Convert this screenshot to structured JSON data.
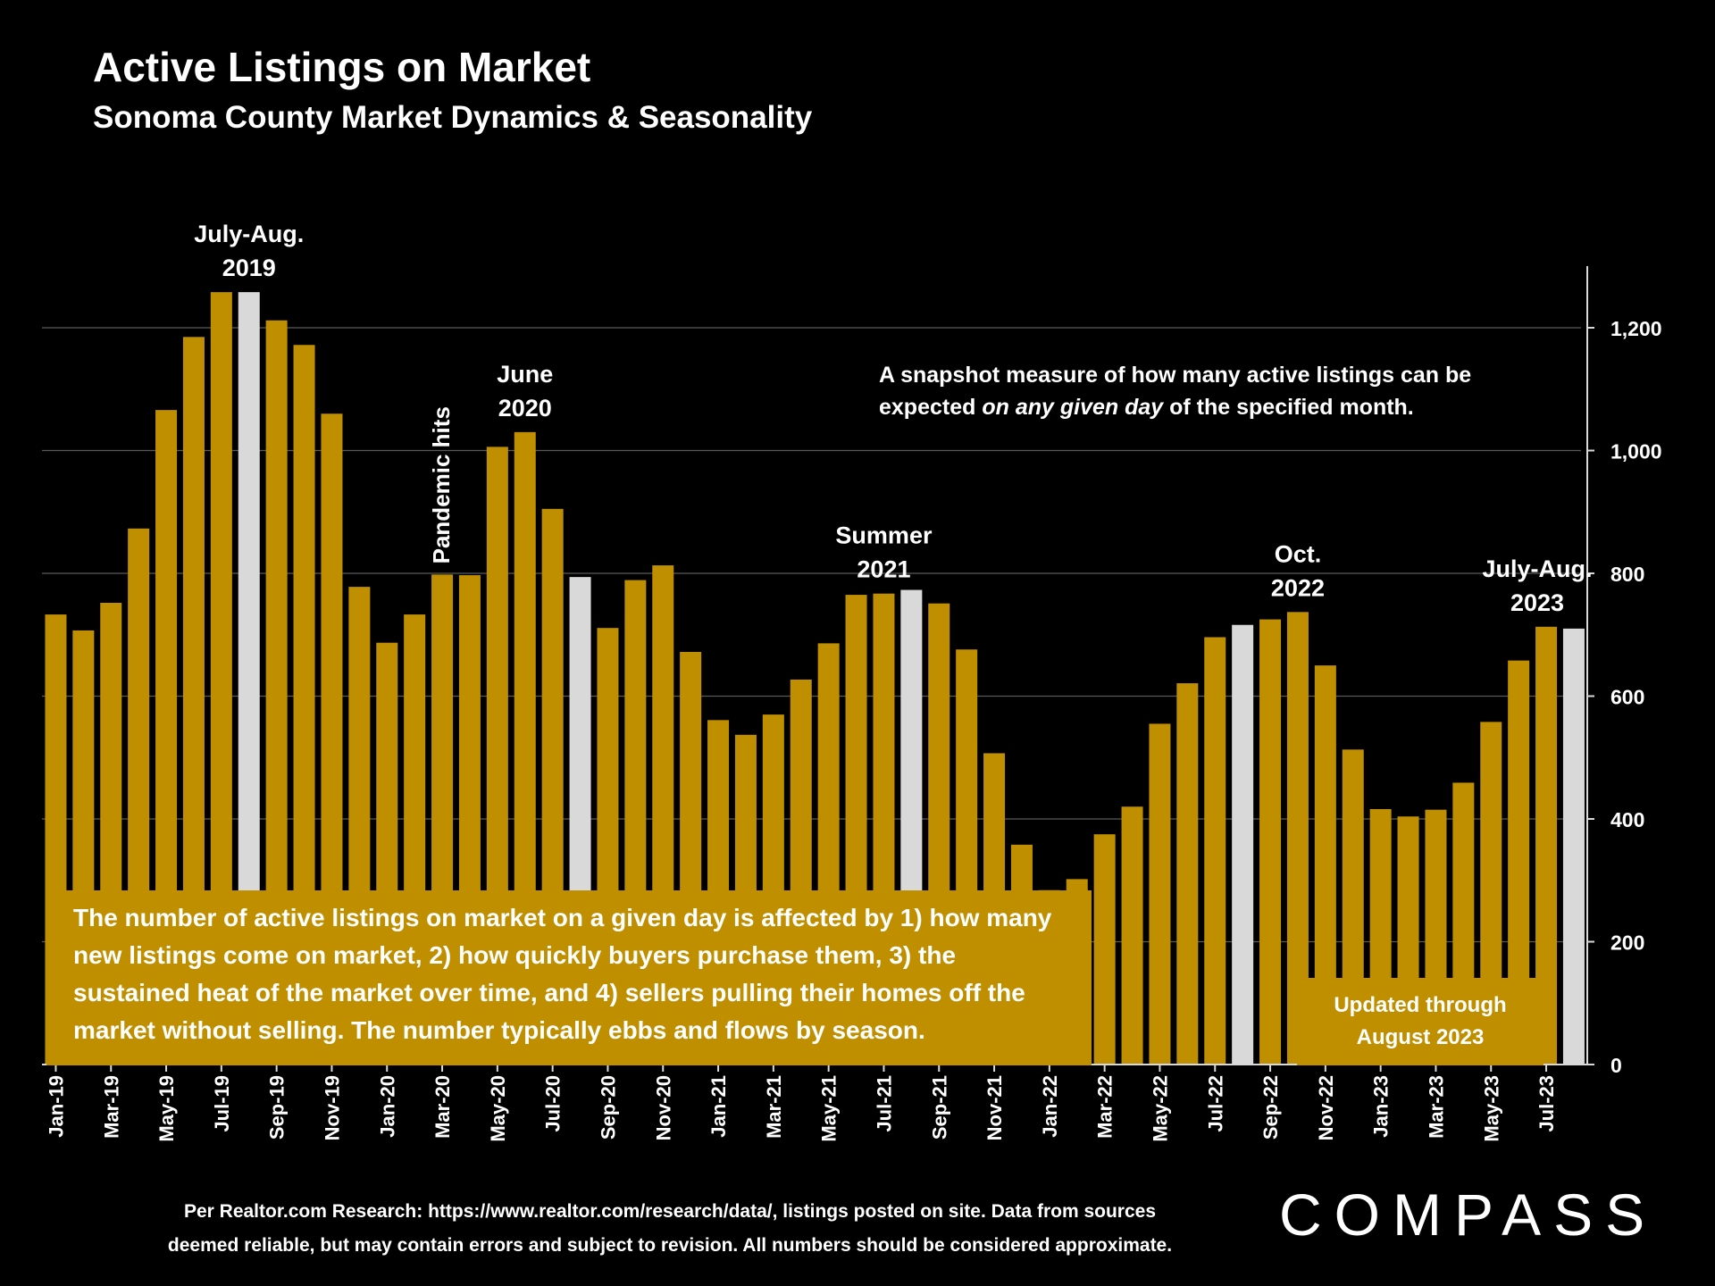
{
  "header": {
    "title": "Active Listings on Market",
    "subtitle": "Sonoma County Market Dynamics & Seasonality"
  },
  "note": {
    "before": "A snapshot measure of how many active listings can be expected ",
    "emphasis": "on any given day",
    "after": " of the specified month."
  },
  "explanation": "The number of active listings on market on a given day is affected by 1) how many new listings come on market, 2) how quickly buyers purchase them, 3) the sustained heat of the market over time, and 4) sellers pulling their homes off the market without selling. The number typically ebbs and flows by season.",
  "updated": {
    "line1": "Updated through",
    "line2": "August 2023"
  },
  "footer": {
    "line1": "Per Realtor.com Research:  https://www.realtor.com/research/data/, listings posted on site. Data from sources",
    "line2": "deemed reliable, but may contain errors and subject to revision. All numbers should be considered approximate."
  },
  "logo": "COMPASS",
  "colors": {
    "bar": "#bf8f00",
    "highlight": "#d9d9d9",
    "background": "#000000",
    "grid": "#595959",
    "text": "#ffffff"
  },
  "chart_data": {
    "type": "bar",
    "title": "Active Listings on Market",
    "categories": [
      "Jan-19",
      "Feb-19",
      "Mar-19",
      "Apr-19",
      "May-19",
      "Jun-19",
      "Jul-19",
      "Aug-19",
      "Sep-19",
      "Oct-19",
      "Nov-19",
      "Dec-19",
      "Jan-20",
      "Feb-20",
      "Mar-20",
      "Apr-20",
      "May-20",
      "Jun-20",
      "Jul-20",
      "Aug-20",
      "Sep-20",
      "Oct-20",
      "Nov-20",
      "Dec-20",
      "Jan-21",
      "Feb-21",
      "Mar-21",
      "Apr-21",
      "May-21",
      "Jun-21",
      "Jul-21",
      "Aug-21",
      "Sep-21",
      "Oct-21",
      "Nov-21",
      "Dec-21",
      "Jan-22",
      "Feb-22",
      "Mar-22",
      "Apr-22",
      "May-22",
      "Jun-22",
      "Jul-22",
      "Aug-22",
      "Sep-22",
      "Oct-22",
      "Nov-22",
      "Dec-22",
      "Jan-23",
      "Feb-23",
      "Mar-23",
      "Apr-23",
      "May-23",
      "Jun-23",
      "Jul-23",
      "Aug-23"
    ],
    "values": [
      733,
      707,
      752,
      873,
      1066,
      1185,
      1258,
      1258,
      1212,
      1172,
      1060,
      778,
      687,
      733,
      798,
      797,
      1006,
      1030,
      905,
      794,
      711,
      789,
      813,
      672,
      561,
      537,
      570,
      627,
      686,
      765,
      767,
      773,
      751,
      676,
      507,
      358,
      284,
      302,
      375,
      420,
      555,
      621,
      696,
      716,
      725,
      737,
      650,
      513,
      416,
      404,
      415,
      459,
      558,
      658,
      713,
      710
    ],
    "highlighted": [
      "Aug-19",
      "Aug-20",
      "Aug-21",
      "Aug-22",
      "Aug-23"
    ],
    "tick_labels": [
      "Jan-19",
      "Mar-19",
      "May-19",
      "Jul-19",
      "Sep-19",
      "Nov-19",
      "Jan-20",
      "Mar-20",
      "May-20",
      "Jul-20",
      "Sep-20",
      "Nov-20",
      "Jan-21",
      "Mar-21",
      "May-21",
      "Jul-21",
      "Sep-21",
      "Nov-21",
      "Jan-22",
      "Mar-22",
      "May-22",
      "Jul-22",
      "Sep-22",
      "Nov-22",
      "Jan-23",
      "Mar-23",
      "May-23",
      "Jul-23"
    ],
    "yticks": [
      0,
      200,
      400,
      600,
      800,
      1000,
      1200
    ],
    "ytick_labels": [
      "0",
      "200",
      "400",
      "600",
      "800",
      "1,000",
      "1,200"
    ],
    "ylim": [
      0,
      1300
    ],
    "y_axis_side": "right",
    "grid": true,
    "annotations": [
      {
        "lines": [
          "July-Aug.",
          "2019"
        ],
        "at": "Aug-19",
        "vertical": false
      },
      {
        "lines": [
          "June",
          "2020"
        ],
        "at": "Jun-20",
        "vertical": false
      },
      {
        "lines": [
          "Pandemic hits"
        ],
        "at": "Mar-20",
        "vertical": true
      },
      {
        "lines": [
          "Summer",
          "2021"
        ],
        "at": "Jul-21",
        "vertical": false
      },
      {
        "lines": [
          "Oct.",
          "2022"
        ],
        "at": "Oct-22",
        "vertical": false
      },
      {
        "lines": [
          "July-Aug.",
          "2023"
        ],
        "at": "Jul-23",
        "vertical": false
      }
    ]
  }
}
